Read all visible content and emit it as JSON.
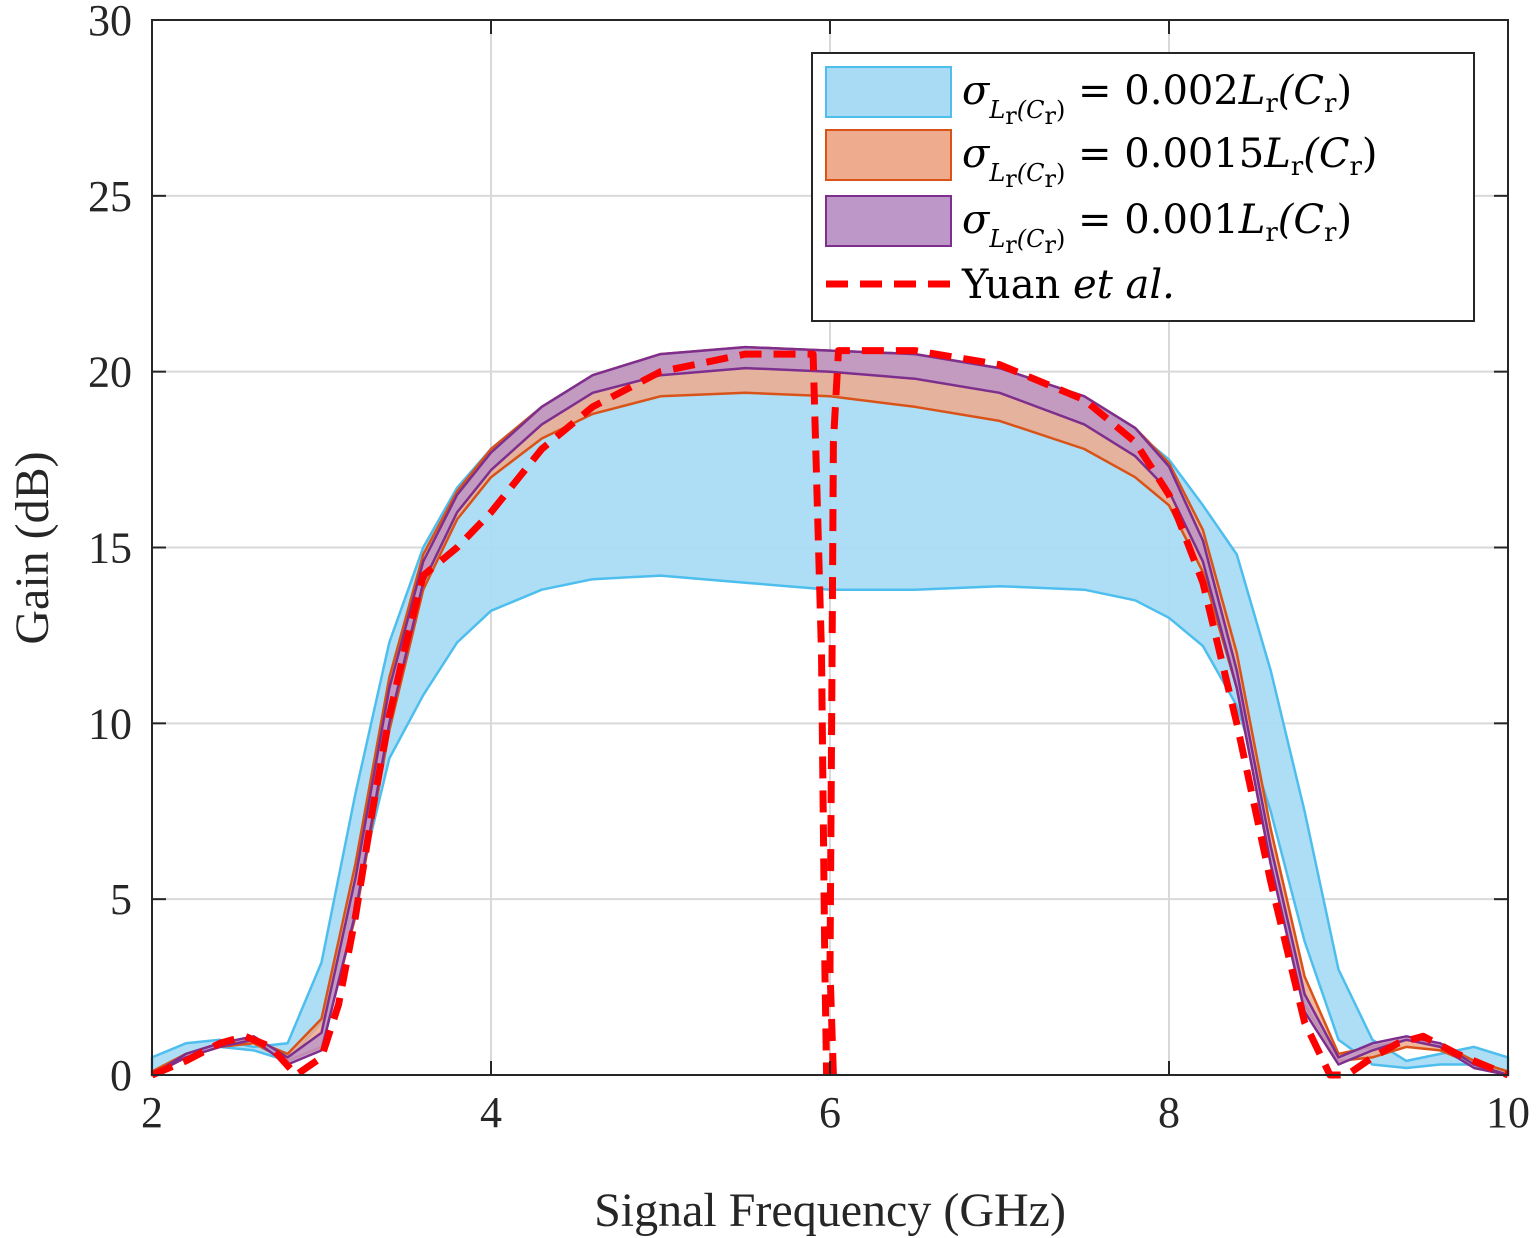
{
  "chart_data": {
    "type": "area",
    "title": "",
    "xlabel": "Signal Frequency (GHz)",
    "ylabel": "Gain (dB)",
    "xlim": [
      2,
      10
    ],
    "ylim": [
      0,
      30
    ],
    "xticks": [
      2,
      4,
      6,
      8,
      10
    ],
    "xtick_labels": [
      "2",
      "4",
      "6",
      "8",
      "10"
    ],
    "yticks": [
      0,
      5,
      10,
      15,
      20,
      25,
      30
    ],
    "ytick_labels": [
      "0",
      "5",
      "10",
      "15",
      "20",
      "25",
      "30"
    ],
    "grid": true,
    "legend_position": "top-right",
    "series": [
      {
        "name": "σ_{L_r(C_r)} = 0.002L_r(C_r)",
        "legend": {
          "sigma": "σ",
          "sub_main": "L",
          "sub_r": "r",
          "sub_paren": "(C",
          "sub_r2": "r",
          "sub_close": ")",
          "rhs": " = 0.002",
          "rhs_L": "L",
          "rhs_r": "r",
          "rhs_paren": "(C",
          "rhs_r2": "r",
          "rhs_close": ")"
        },
        "kind": "band",
        "fill": "#a9dcf4",
        "stroke": "#4dbeee",
        "x": [
          2.0,
          2.2,
          2.4,
          2.6,
          2.8,
          3.0,
          3.2,
          3.4,
          3.6,
          3.8,
          4.0,
          4.3,
          4.6,
          5.0,
          5.5,
          6.0,
          6.5,
          7.0,
          7.5,
          7.8,
          8.0,
          8.2,
          8.4,
          8.6,
          8.8,
          9.0,
          9.2,
          9.4,
          9.6,
          9.8,
          10.0
        ],
        "upper": [
          0.5,
          0.9,
          1.0,
          0.8,
          0.9,
          3.2,
          8.0,
          12.3,
          15.0,
          16.7,
          17.8,
          19.0,
          19.8,
          20.4,
          20.6,
          20.6,
          20.5,
          20.1,
          19.2,
          18.3,
          17.5,
          16.2,
          14.8,
          11.5,
          7.5,
          3.0,
          1.0,
          0.4,
          0.6,
          0.8,
          0.5
        ],
        "lower": [
          0.1,
          0.5,
          0.8,
          0.7,
          0.4,
          1.5,
          5.0,
          9.0,
          10.8,
          12.3,
          13.2,
          13.8,
          14.1,
          14.2,
          14.0,
          13.8,
          13.8,
          13.9,
          13.8,
          13.5,
          13.0,
          12.2,
          10.5,
          7.5,
          3.8,
          1.0,
          0.3,
          0.2,
          0.3,
          0.3,
          0.1
        ]
      },
      {
        "name": "σ_{L_r(C_r)} = 0.0015L_r(C_r)",
        "legend": {
          "sigma": "σ",
          "sub_main": "L",
          "sub_r": "r",
          "sub_paren": "(C",
          "sub_r2": "r",
          "sub_close": ")",
          "rhs": " = 0.0015",
          "rhs_L": "L",
          "rhs_r": "r",
          "rhs_paren": "(C",
          "rhs_r2": "r",
          "rhs_close": ")"
        },
        "kind": "band",
        "fill": "#eeab8d",
        "stroke": "#d95319",
        "x": [
          2.0,
          2.2,
          2.4,
          2.6,
          2.8,
          3.0,
          3.2,
          3.4,
          3.6,
          3.8,
          4.0,
          4.3,
          4.6,
          5.0,
          5.5,
          6.0,
          6.5,
          7.0,
          7.5,
          7.8,
          8.0,
          8.2,
          8.4,
          8.6,
          8.8,
          9.0,
          9.2,
          9.4,
          9.6,
          9.8,
          10.0
        ],
        "upper": [
          0.1,
          0.6,
          0.9,
          1.0,
          0.6,
          1.6,
          6.0,
          11.3,
          14.8,
          16.6,
          17.8,
          19.0,
          19.9,
          20.5,
          20.7,
          20.6,
          20.5,
          20.1,
          19.3,
          18.4,
          17.4,
          15.5,
          12.0,
          7.0,
          2.8,
          0.6,
          0.8,
          1.0,
          0.9,
          0.4,
          0.1
        ],
        "lower": [
          0.0,
          0.5,
          0.8,
          0.9,
          0.4,
          0.8,
          4.5,
          9.8,
          13.8,
          15.8,
          17.0,
          18.1,
          18.8,
          19.3,
          19.4,
          19.3,
          19.0,
          18.6,
          17.8,
          17.0,
          16.2,
          14.3,
          11.0,
          6.0,
          2.0,
          0.4,
          0.5,
          0.8,
          0.7,
          0.3,
          0.0
        ]
      },
      {
        "name": "σ_{L_r(C_r)} = 0.001L_r(C_r)",
        "legend": {
          "sigma": "σ",
          "sub_main": "L",
          "sub_r": "r",
          "sub_paren": "(C",
          "sub_r2": "r",
          "sub_close": ")",
          "rhs": " = 0.001",
          "rhs_L": "L",
          "rhs_r": "r",
          "rhs_paren": "(C",
          "rhs_r2": "r",
          "rhs_close": ")"
        },
        "kind": "band",
        "fill": "#bd97c8",
        "stroke": "#7e2f8e",
        "x": [
          2.0,
          2.2,
          2.4,
          2.6,
          2.8,
          3.0,
          3.2,
          3.4,
          3.6,
          3.8,
          4.0,
          4.3,
          4.6,
          5.0,
          5.5,
          6.0,
          6.5,
          7.0,
          7.5,
          7.8,
          8.0,
          8.2,
          8.4,
          8.6,
          8.8,
          9.0,
          9.2,
          9.4,
          9.6,
          9.8,
          10.0
        ],
        "upper": [
          0.0,
          0.6,
          0.9,
          1.1,
          0.5,
          1.2,
          5.6,
          11.0,
          14.6,
          16.5,
          17.7,
          19.0,
          19.9,
          20.5,
          20.7,
          20.6,
          20.5,
          20.1,
          19.3,
          18.4,
          17.3,
          15.2,
          11.5,
          6.5,
          2.3,
          0.5,
          0.9,
          1.1,
          0.9,
          0.3,
          0.0
        ],
        "lower": [
          0.0,
          0.5,
          0.8,
          1.0,
          0.3,
          0.7,
          4.6,
          10.0,
          14.0,
          16.0,
          17.2,
          18.5,
          19.4,
          19.9,
          20.1,
          20.0,
          19.8,
          19.4,
          18.5,
          17.6,
          16.6,
          14.6,
          11.0,
          6.0,
          1.8,
          0.3,
          0.7,
          1.0,
          0.8,
          0.2,
          0.0
        ]
      },
      {
        "name": "Yuan et al.",
        "legend": {
          "plain": "Yuan ",
          "italic": "et al."
        },
        "kind": "line",
        "stroke": "#ff0000",
        "dashed": true,
        "segments": [
          {
            "x": [
              2.0,
              2.2,
              2.4,
              2.55,
              2.7,
              2.85,
              3.0,
              3.1,
              3.2,
              3.3,
              3.4,
              3.5,
              3.6,
              3.8,
              4.0,
              4.3,
              4.6,
              5.0,
              5.5,
              5.9,
              5.95,
              5.97,
              5.98
            ],
            "y": [
              0.0,
              0.4,
              0.9,
              1.1,
              0.8,
              0.0,
              0.5,
              2.0,
              4.5,
              7.5,
              10.2,
              12.3,
              14.2,
              15.0,
              16.0,
              17.8,
              19.0,
              20.0,
              20.5,
              20.5,
              12.0,
              3.0,
              0.0
            ]
          },
          {
            "x": [
              6.02,
              6.0,
              6.01,
              6.02,
              6.05,
              6.5,
              7.0,
              7.5,
              7.8,
              8.0,
              8.2,
              8.4,
              8.6,
              8.8,
              8.95,
              9.05,
              9.2,
              9.35,
              9.5,
              9.7,
              10.0
            ],
            "y": [
              0.0,
              3.0,
              10.3,
              18.0,
              20.6,
              20.6,
              20.2,
              19.2,
              18.0,
              16.5,
              14.0,
              10.0,
              5.5,
              1.5,
              0.0,
              0.0,
              0.5,
              0.9,
              1.1,
              0.6,
              0.0
            ]
          }
        ]
      }
    ]
  }
}
